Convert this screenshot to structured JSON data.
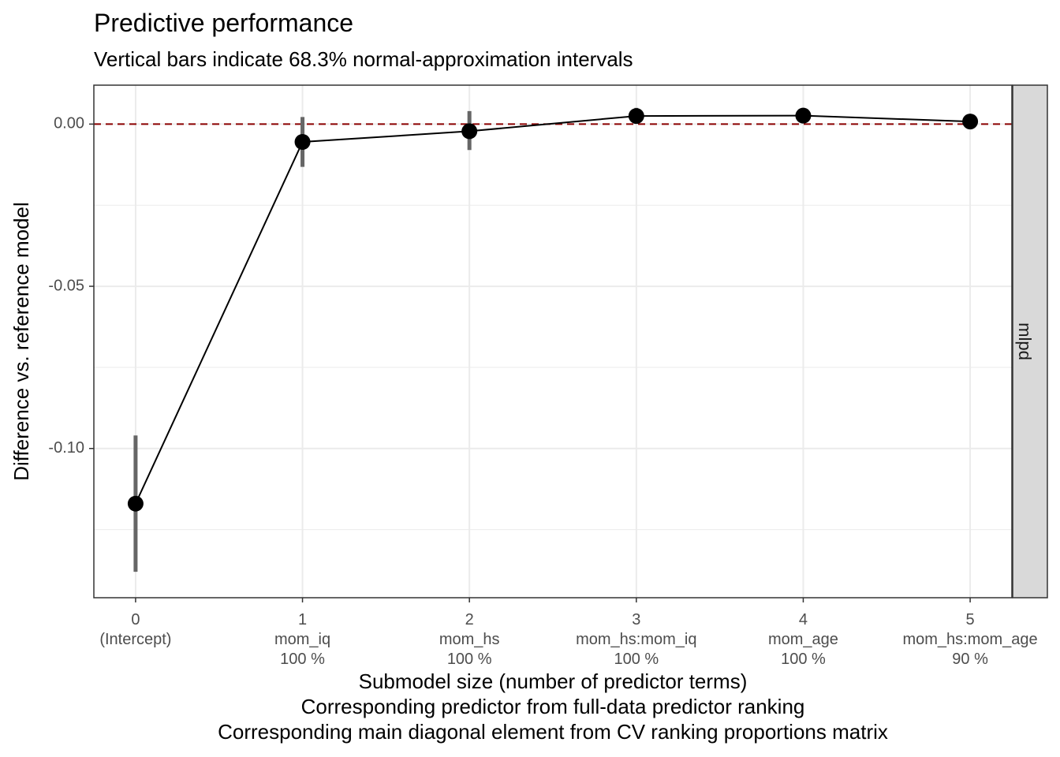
{
  "chart_data": {
    "type": "line",
    "title": "Predictive performance",
    "subtitle": "Vertical bars indicate 68.3% normal-approximation intervals",
    "ylabel": "Difference vs. reference model",
    "xlabel_lines": [
      "Submodel size (number of predictor terms)",
      "Corresponding predictor from full-data predictor ranking",
      "Corresponding main diagonal element from CV ranking proportions matrix"
    ],
    "facet_label": "mlpd",
    "x": [
      0,
      1,
      2,
      3,
      4,
      5
    ],
    "x_tick_labels": [
      [
        "0",
        "(Intercept)",
        ""
      ],
      [
        "1",
        "mom_iq",
        "100 %"
      ],
      [
        "2",
        "mom_hs",
        "100 %"
      ],
      [
        "3",
        "mom_hs:mom_iq",
        "100 %"
      ],
      [
        "4",
        "mom_age",
        "100 %"
      ],
      [
        "5",
        "mom_hs:mom_age",
        "90 %"
      ]
    ],
    "series": [
      {
        "values": [
          -0.117,
          -0.0055,
          -0.0022,
          0.0025,
          0.0026,
          0.0008
        ],
        "lower": [
          -0.138,
          -0.0132,
          -0.008,
          0.0008,
          0.0008,
          -0.0008
        ],
        "upper": [
          -0.096,
          0.0022,
          0.004,
          0.005,
          0.005,
          0.0025
        ]
      }
    ],
    "reference_line": {
      "y": 0,
      "color": "#8b0000",
      "style": "dashed"
    },
    "y_ticks": [
      0.0,
      -0.05,
      -0.1
    ],
    "y_tick_labels": [
      "0.00",
      "-0.05",
      "-0.10"
    ],
    "xlim": [
      -0.25,
      5.25
    ],
    "ylim": [
      -0.146,
      0.012
    ],
    "grid": true,
    "colors": {
      "line": "#000000",
      "point": "#000000",
      "interval": "#666666",
      "grid": "#ebebeb",
      "panel_border": "#333333",
      "strip_fill": "#d9d9d9"
    }
  }
}
